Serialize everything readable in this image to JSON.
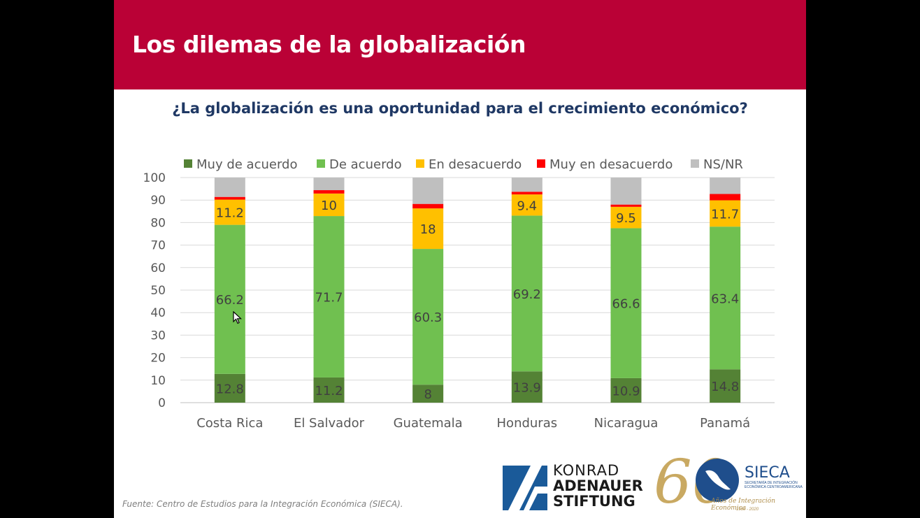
{
  "slide": {
    "title": "Los dilemas de la globalización",
    "source": "Fuente: Centro de Estudios para la Integración Económica (SIECA)."
  },
  "logos": {
    "kas": {
      "line1": "KONRAD",
      "line2": "ADENAUER",
      "line3": "STIFTUNG"
    },
    "sieca": {
      "number": "60",
      "name": "SIECA",
      "subtitle": "SECRETARÍA DE INTEGRACIÓN ECONÓMICA CENTROAMERICANA",
      "tagline": "Años de Integración Económica",
      "years": "1960 - 2020"
    }
  },
  "colors": {
    "header": "#BA0136",
    "title_text": "#1F3864",
    "muy_de_acuerdo": "#548235",
    "de_acuerdo": "#70C050",
    "en_desacuerdo": "#FFC000",
    "muy_en_desacuerdo": "#FF0000",
    "ns_nr": "#BFBFBF"
  },
  "chart_data": {
    "type": "bar",
    "stacked": true,
    "title": "¿La globalización es una oportunidad para el crecimiento económico?",
    "xlabel": "",
    "ylabel": "",
    "ylim": [
      0,
      100
    ],
    "yticks": [
      0,
      10,
      20,
      30,
      40,
      50,
      60,
      70,
      80,
      90,
      100
    ],
    "grid": true,
    "legend_position": "top",
    "categories": [
      "Costa Rica",
      "El Salvador",
      "Guatemala",
      "Honduras",
      "Nicaragua",
      "Panamá"
    ],
    "series": [
      {
        "name": "Muy de acuerdo",
        "color": "#548235",
        "values": [
          12.8,
          11.2,
          8,
          13.9,
          10.9,
          14.8
        ],
        "labeled": true
      },
      {
        "name": "De acuerdo",
        "color": "#70C050",
        "values": [
          66.2,
          71.7,
          60.3,
          69.2,
          66.6,
          63.4
        ],
        "labeled": true
      },
      {
        "name": "En desacuerdo",
        "color": "#FFC000",
        "values": [
          11.2,
          10,
          18,
          9.4,
          9.5,
          11.7
        ],
        "labeled": true
      },
      {
        "name": "Muy en desacuerdo",
        "color": "#FF0000",
        "values": [
          1.2,
          1.5,
          2,
          1.2,
          1,
          2.8
        ],
        "labeled": false
      },
      {
        "name": "NS/NR",
        "color": "#BFBFBF",
        "values": [
          8.6,
          5.6,
          11.7,
          6.3,
          12,
          7.3
        ],
        "labeled": false
      }
    ]
  }
}
